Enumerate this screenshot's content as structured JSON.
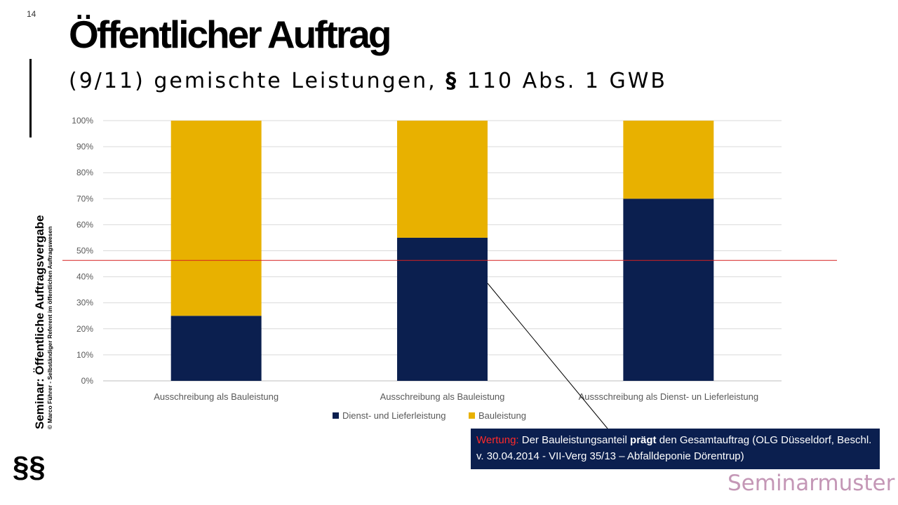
{
  "page_number": "14",
  "title": "Öffentlicher Auftrag",
  "subtitle": {
    "prefix": "(9/11) gemischte Leistungen, ",
    "bold": "§",
    "suffix": " 110 Abs. 1 GWB"
  },
  "sidebar": {
    "title": "Seminar: Öffentliche Auftragsvergabe",
    "subtitle": "© Marco Führer - Selbständiger Referent im öffentlichen Auftragswesen",
    "symbol": "§§"
  },
  "chart_data": {
    "type": "bar",
    "stacked": true,
    "categories": [
      "Ausschreibung als Bauleistung",
      "Ausschreibung als Bauleistung",
      "Aussschreibung als Dienst- un Lieferleistung"
    ],
    "series": [
      {
        "name": "Dienst- und Lieferleistung",
        "values": [
          25,
          55,
          70
        ],
        "color": "#0b1f4f"
      },
      {
        "name": "Bauleistung",
        "values": [
          75,
          45,
          30
        ],
        "color": "#e8b100"
      }
    ],
    "ylim": [
      0,
      100
    ],
    "y_ticks": [
      "0%",
      "10%",
      "20%",
      "30%",
      "40%",
      "50%",
      "60%",
      "70%",
      "80%",
      "90%",
      "100%"
    ],
    "threshold_line": {
      "value": 46.3,
      "color": "#d62020"
    },
    "grid": true,
    "legend_position": "bottom"
  },
  "callout": {
    "label": "Wertung:",
    "text_1": " Der Bauleistungsanteil ",
    "bold": "prägt",
    "text_2": " den Gesamtauftrag (OLG Düsseldorf, Beschl. v. 30.04.2014 - VII-Verg 35/13 – Abfalldeponie Dörentrup)"
  },
  "watermark": "Seminarmuster"
}
